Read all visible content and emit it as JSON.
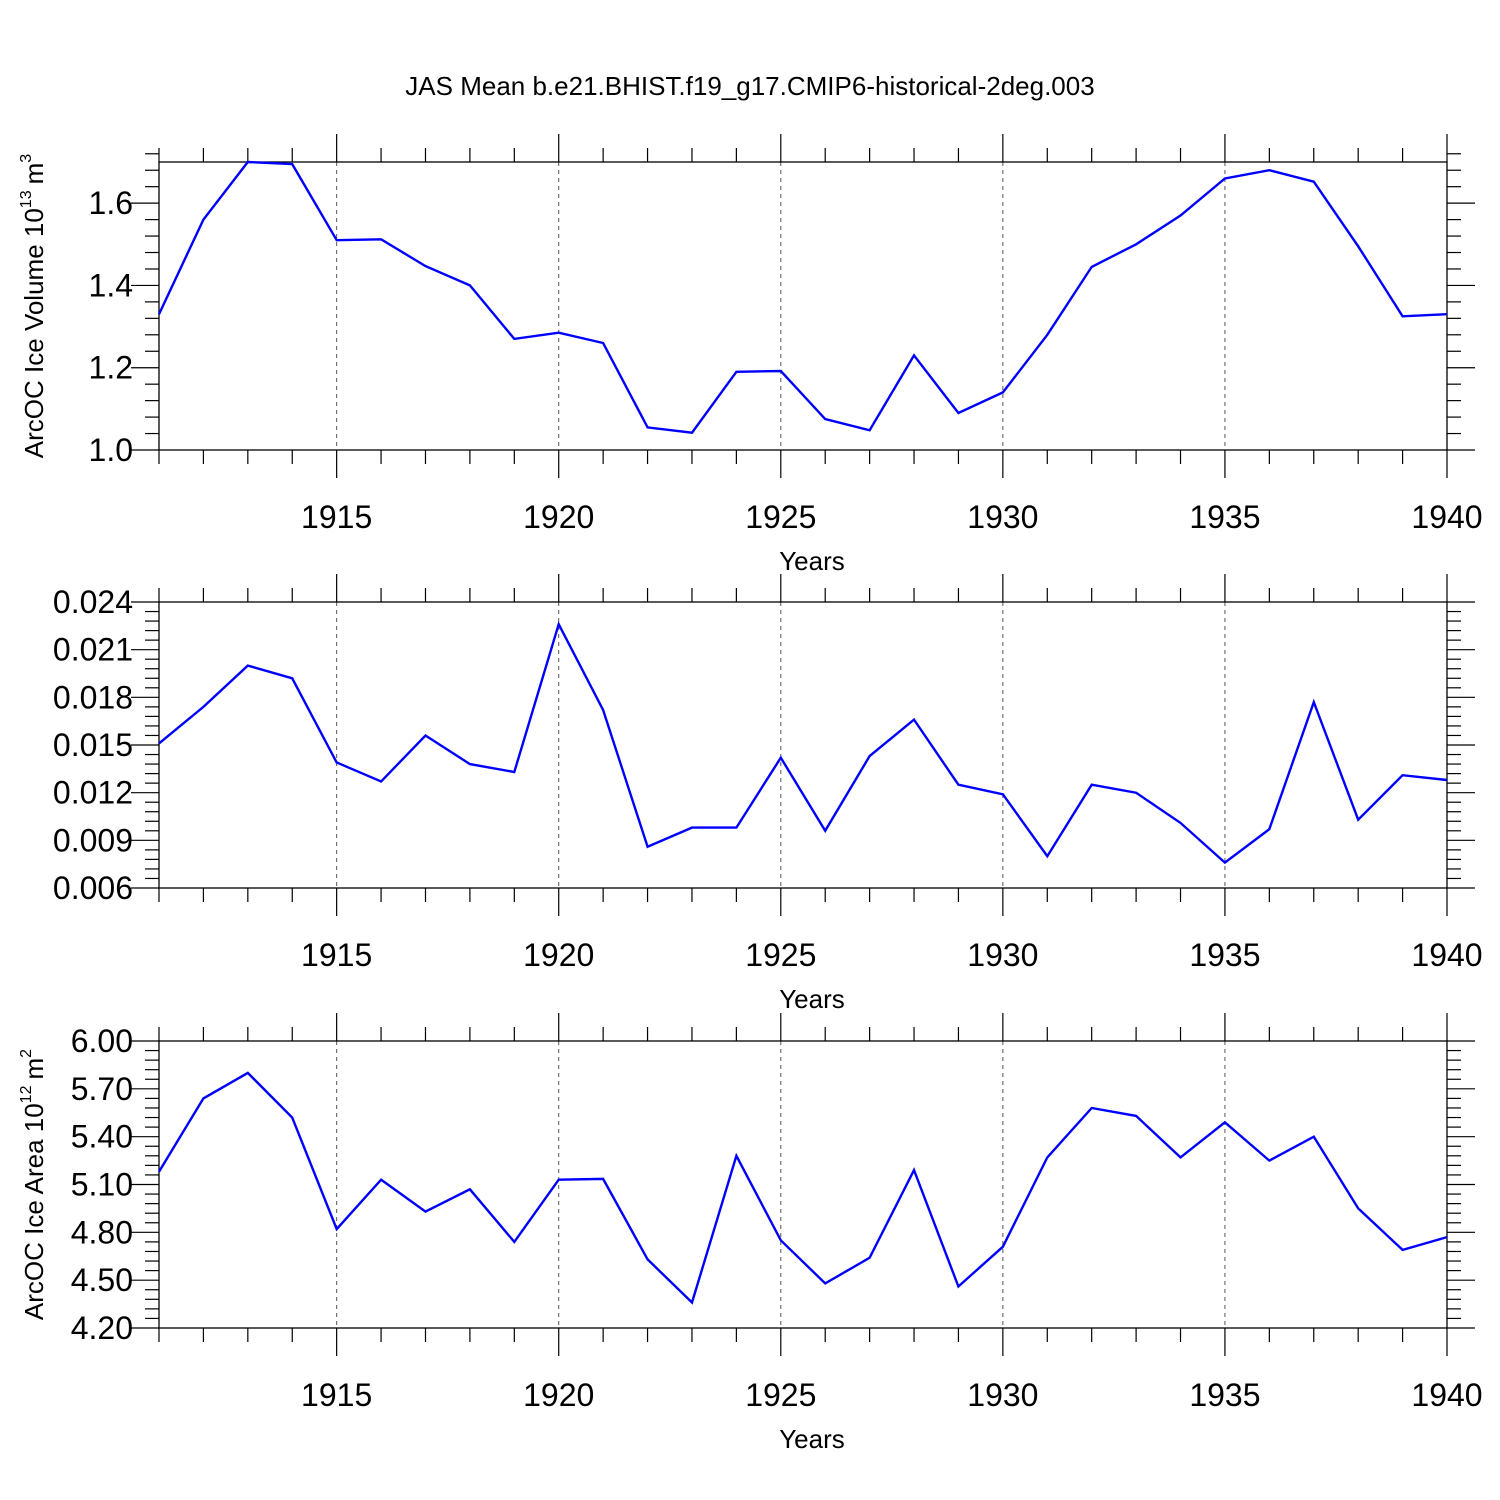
{
  "title": "JAS Mean b.e21.BHIST.f19_g17.CMIP6-historical-2deg.003",
  "colors": {
    "series": "#0000ff",
    "axes": "#000000",
    "grid": "#555555"
  },
  "chart_data": [
    {
      "type": "line",
      "xlabel": "Years",
      "ylabel": "ArcOC Ice Volume 10",
      "ylabel_exp": "13",
      "ylabel_unit": "m",
      "ylabel_unit_exp": "3",
      "xlim": [
        1911,
        1940
      ],
      "ylim": [
        1.0,
        1.7
      ],
      "yticks": [
        1.0,
        1.2,
        1.4,
        1.6
      ],
      "ytick_labels": [
        "1.0",
        "1.2",
        "1.4",
        "1.6"
      ],
      "xticks": [
        1915,
        1920,
        1925,
        1930,
        1935,
        1940
      ],
      "xtick_labels": [
        "1915",
        "1920",
        "1925",
        "1930",
        "1935",
        "1940"
      ],
      "grid": "vertical dashed at major x ticks",
      "x": [
        1911,
        1912,
        1913,
        1914,
        1915,
        1916,
        1917,
        1918,
        1919,
        1920,
        1921,
        1922,
        1923,
        1924,
        1925,
        1926,
        1927,
        1928,
        1929,
        1930,
        1931,
        1932,
        1933,
        1934,
        1935,
        1936,
        1937,
        1938,
        1939,
        1940
      ],
      "values": [
        1.33,
        1.56,
        1.7,
        1.695,
        1.51,
        1.512,
        1.447,
        1.4,
        1.27,
        1.285,
        1.26,
        1.055,
        1.042,
        1.19,
        1.192,
        1.075,
        1.048,
        1.23,
        1.09,
        1.14,
        1.28,
        1.445,
        1.5,
        1.57,
        1.66,
        1.68,
        1.652,
        1.495,
        1.325,
        1.33
      ]
    },
    {
      "type": "line",
      "xlabel": "Years",
      "ylabel": "",
      "xlim": [
        1911,
        1940
      ],
      "ylim": [
        0.006,
        0.024
      ],
      "yticks": [
        0.006,
        0.009,
        0.012,
        0.015,
        0.018,
        0.021,
        0.024
      ],
      "ytick_labels": [
        "0.006",
        "0.009",
        "0.012",
        "0.015",
        "0.018",
        "0.021",
        "0.024"
      ],
      "xticks": [
        1915,
        1920,
        1925,
        1930,
        1935,
        1940
      ],
      "xtick_labels": [
        "1915",
        "1920",
        "1925",
        "1930",
        "1935",
        "1940"
      ],
      "grid": "vertical dashed at major x ticks",
      "x": [
        1911,
        1912,
        1913,
        1914,
        1915,
        1916,
        1917,
        1918,
        1919,
        1920,
        1921,
        1922,
        1923,
        1924,
        1925,
        1926,
        1927,
        1928,
        1929,
        1930,
        1931,
        1932,
        1933,
        1934,
        1935,
        1936,
        1937,
        1938,
        1939,
        1940
      ],
      "values": [
        0.0151,
        0.0174,
        0.02,
        0.0192,
        0.0139,
        0.0127,
        0.0156,
        0.0138,
        0.0133,
        0.0226,
        0.0172,
        0.0086,
        0.0098,
        0.0098,
        0.0142,
        0.0096,
        0.0143,
        0.0166,
        0.0125,
        0.0119,
        0.008,
        0.0125,
        0.012,
        0.0101,
        0.0076,
        0.0097,
        0.0177,
        0.0103,
        0.0131,
        0.0128
      ]
    },
    {
      "type": "line",
      "xlabel": "Years",
      "ylabel": "ArcOC Ice Area 10",
      "ylabel_exp": "12",
      "ylabel_unit": "m",
      "ylabel_unit_exp": "2",
      "xlim": [
        1911,
        1940
      ],
      "ylim": [
        4.2,
        6.0
      ],
      "yticks": [
        4.2,
        4.5,
        4.8,
        5.1,
        5.4,
        5.7,
        6.0
      ],
      "ytick_labels": [
        "4.20",
        "4.50",
        "4.80",
        "5.10",
        "5.40",
        "5.70",
        "6.00"
      ],
      "xticks": [
        1915,
        1920,
        1925,
        1930,
        1935,
        1940
      ],
      "xtick_labels": [
        "1915",
        "1920",
        "1925",
        "1930",
        "1935",
        "1940"
      ],
      "grid": "vertical dashed at major x ticks",
      "x": [
        1911,
        1912,
        1913,
        1914,
        1915,
        1916,
        1917,
        1918,
        1919,
        1920,
        1921,
        1922,
        1923,
        1924,
        1925,
        1926,
        1927,
        1928,
        1929,
        1930,
        1931,
        1932,
        1933,
        1934,
        1935,
        1936,
        1937,
        1938,
        1939,
        1940
      ],
      "values": [
        5.18,
        5.64,
        5.8,
        5.52,
        4.82,
        5.13,
        4.93,
        5.07,
        4.74,
        5.13,
        5.135,
        4.63,
        4.36,
        5.28,
        4.75,
        4.48,
        4.64,
        5.19,
        4.46,
        4.71,
        5.27,
        5.58,
        5.53,
        5.27,
        5.49,
        5.25,
        5.4,
        4.95,
        4.69,
        4.77
      ]
    }
  ]
}
